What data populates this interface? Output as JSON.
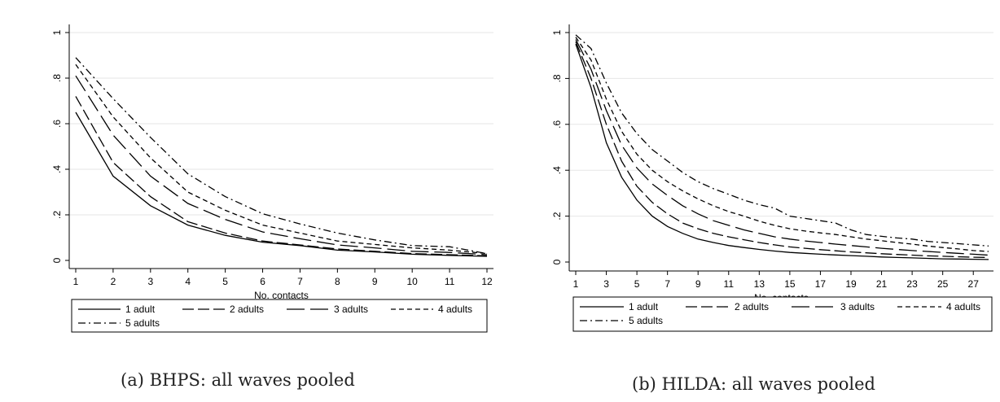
{
  "colors": {
    "line": "#000000",
    "grid": "#e6e6e6",
    "axis": "#000000",
    "background": "#ffffff"
  },
  "chart_data": [
    {
      "type": "line",
      "caption": "(a) BHPS: all waves pooled",
      "xlabel": "No. contacts",
      "ylabel": "",
      "xlim": [
        1,
        12
      ],
      "ylim": [
        0,
        1
      ],
      "xticks": [
        "1",
        "2",
        "3",
        "4",
        "5",
        "6",
        "7",
        "8",
        "9",
        "10",
        "11",
        "12"
      ],
      "yticks": [
        "0",
        ".2",
        ".4",
        ".6",
        ".8",
        "1"
      ],
      "grid": "horizontal",
      "legend_position": "bottom",
      "x": [
        1,
        2,
        3,
        4,
        5,
        6,
        7,
        8,
        9,
        10,
        11,
        12
      ],
      "series": [
        {
          "name": "1 adult",
          "dash": "solid",
          "values": [
            0.65,
            0.37,
            0.24,
            0.155,
            0.11,
            0.08,
            0.065,
            0.045,
            0.037,
            0.027,
            0.022,
            0.018
          ]
        },
        {
          "name": "2 adults",
          "dash": "long-dash",
          "values": [
            0.72,
            0.43,
            0.28,
            0.17,
            0.12,
            0.085,
            0.068,
            0.05,
            0.04,
            0.03,
            0.025,
            0.02
          ]
        },
        {
          "name": "3 adults",
          "dash": "longer-dash",
          "values": [
            0.81,
            0.55,
            0.37,
            0.25,
            0.18,
            0.125,
            0.095,
            0.068,
            0.055,
            0.04,
            0.035,
            0.025
          ]
        },
        {
          "name": "4 adults",
          "dash": "short-dash",
          "values": [
            0.86,
            0.63,
            0.45,
            0.3,
            0.22,
            0.155,
            0.12,
            0.085,
            0.07,
            0.055,
            0.045,
            0.03
          ]
        },
        {
          "name": "5 adults",
          "dash": "dash-dot",
          "values": [
            0.89,
            0.71,
            0.54,
            0.38,
            0.28,
            0.205,
            0.16,
            0.12,
            0.09,
            0.065,
            0.06,
            0.03
          ]
        }
      ]
    },
    {
      "type": "line",
      "caption": "(b) HILDA: all waves pooled",
      "xlabel": "No. contacts",
      "ylabel": "",
      "xlim": [
        1,
        28
      ],
      "ylim": [
        0,
        1
      ],
      "xticks": [
        "1",
        "3",
        "5",
        "7",
        "9",
        "11",
        "13",
        "15",
        "17",
        "19",
        "21",
        "23",
        "25",
        "27"
      ],
      "yticks": [
        "0",
        ".2",
        ".4",
        ".6",
        ".8",
        "1"
      ],
      "grid": "horizontal",
      "legend_position": "bottom",
      "x": [
        1,
        2,
        3,
        4,
        5,
        6,
        7,
        8,
        9,
        10,
        11,
        12,
        13,
        14,
        15,
        16,
        17,
        18,
        19,
        20,
        21,
        22,
        23,
        24,
        25,
        26,
        27,
        28
      ],
      "series": [
        {
          "name": "1 adult",
          "dash": "solid",
          "values": [
            0.95,
            0.76,
            0.52,
            0.37,
            0.27,
            0.2,
            0.155,
            0.125,
            0.1,
            0.085,
            0.072,
            0.063,
            0.055,
            0.048,
            0.042,
            0.038,
            0.034,
            0.031,
            0.028,
            0.025,
            0.022,
            0.02,
            0.018,
            0.016,
            0.014,
            0.013,
            0.012,
            0.011
          ]
        },
        {
          "name": "2 adults",
          "dash": "long-dash",
          "values": [
            0.96,
            0.8,
            0.6,
            0.44,
            0.33,
            0.26,
            0.21,
            0.17,
            0.145,
            0.125,
            0.11,
            0.097,
            0.085,
            0.075,
            0.066,
            0.06,
            0.054,
            0.049,
            0.044,
            0.04,
            0.036,
            0.033,
            0.03,
            0.027,
            0.025,
            0.023,
            0.021,
            0.02
          ]
        },
        {
          "name": "3 adults",
          "dash": "longer-dash",
          "values": [
            0.97,
            0.84,
            0.66,
            0.51,
            0.41,
            0.34,
            0.29,
            0.245,
            0.21,
            0.18,
            0.16,
            0.14,
            0.125,
            0.11,
            0.1,
            0.092,
            0.085,
            0.078,
            0.072,
            0.066,
            0.06,
            0.055,
            0.05,
            0.046,
            0.042,
            0.038,
            0.034,
            0.03
          ]
        },
        {
          "name": "4 adults",
          "dash": "short-dash",
          "values": [
            0.98,
            0.88,
            0.71,
            0.57,
            0.47,
            0.4,
            0.35,
            0.31,
            0.275,
            0.245,
            0.22,
            0.2,
            0.178,
            0.16,
            0.145,
            0.135,
            0.127,
            0.12,
            0.11,
            0.1,
            0.093,
            0.085,
            0.078,
            0.07,
            0.063,
            0.057,
            0.05,
            0.046
          ]
        },
        {
          "name": "5 adults",
          "dash": "dash-dot",
          "values": [
            0.99,
            0.93,
            0.78,
            0.65,
            0.56,
            0.49,
            0.44,
            0.39,
            0.35,
            0.32,
            0.295,
            0.27,
            0.25,
            0.235,
            0.2,
            0.19,
            0.18,
            0.17,
            0.14,
            0.12,
            0.112,
            0.105,
            0.1,
            0.09,
            0.085,
            0.08,
            0.075,
            0.07
          ]
        }
      ]
    }
  ]
}
